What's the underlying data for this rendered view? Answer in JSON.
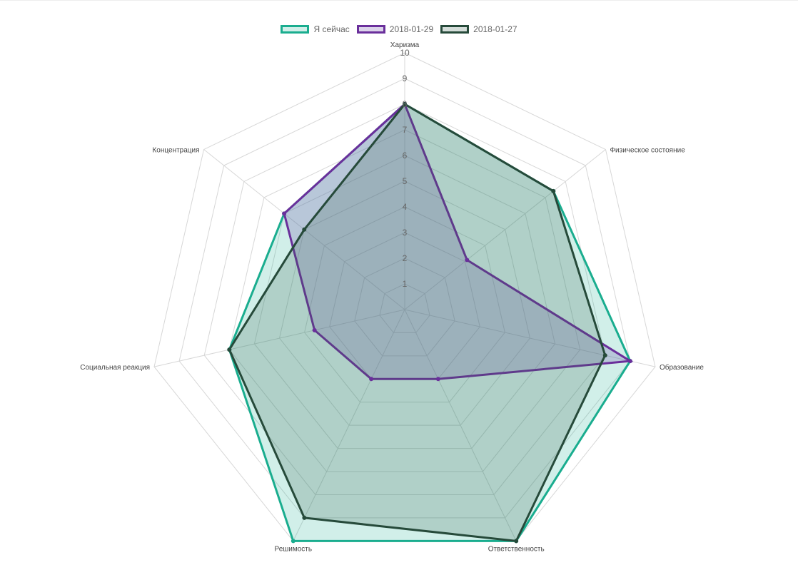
{
  "chart_data": {
    "type": "radar",
    "axes": [
      "Харизма",
      "Физическое состояние",
      "Образование",
      "Ответственность",
      "Решимость",
      "Социальная реакция",
      "Концентрация"
    ],
    "r_range": [
      0,
      10
    ],
    "ticks": [
      "1",
      "2",
      "3",
      "4",
      "5",
      "6",
      "7",
      "8",
      "9",
      "10"
    ],
    "grid": true,
    "legend_position": "top",
    "series": [
      {
        "name": "Я сейчас",
        "values": [
          8,
          7.4,
          9,
          10,
          10,
          7,
          6
        ],
        "stroke": "#1aad8f",
        "fill": "rgba(26,173,143,0.2)"
      },
      {
        "name": "2018-01-29",
        "values": [
          8,
          3.1,
          9,
          3,
          3,
          3.6,
          6
        ],
        "stroke": "#6a2f9b",
        "fill": "rgba(110,80,170,0.25)"
      },
      {
        "name": "2018-01-27",
        "values": [
          8,
          7.4,
          8,
          10,
          9,
          7,
          5
        ],
        "stroke": "#264a3a",
        "fill": "rgba(60,100,80,0.22)"
      }
    ]
  }
}
